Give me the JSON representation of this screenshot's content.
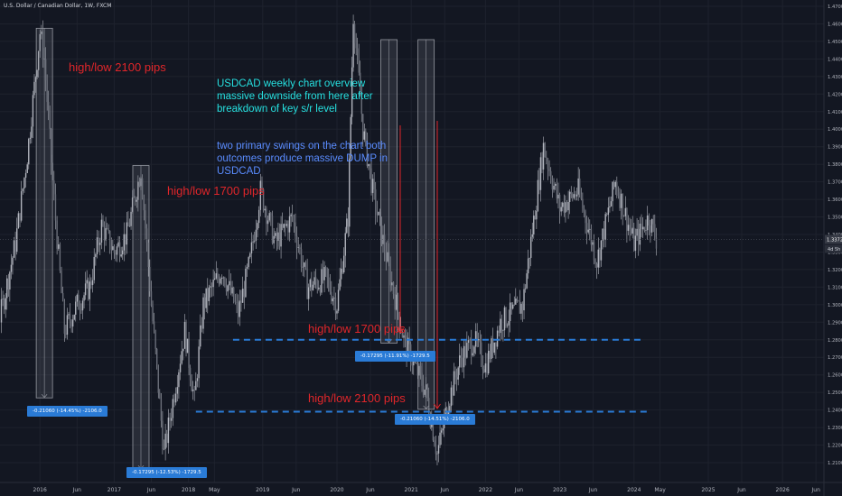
{
  "header": {
    "title": "U.S. Dollar / Canadian Dollar, 1W, FXCM"
  },
  "annotations": {
    "a1": "high/low 2100 pips",
    "a2": "high/low 1700 pips",
    "a3": "high/low 1700 pips",
    "a4": "high/low 2100 pips",
    "overview": "USDCAD weekly chart overview massive downside from here after breakdown of key s/r level",
    "swings": "two primary swings on the chart both outcomes produce massive DUMP in USDCAD"
  },
  "measure_labels": {
    "m1": "-0.21060 (-14.45%) -2106.0",
    "m2": "-0.17295 (-12.53%) -1729.5",
    "m3": "-0.17295 (-11.91%) -1729.5",
    "m4": "-0.21060 (-14.51%) -2106.0"
  },
  "price_axis": {
    "current_price": "1.33720",
    "countdown": "4d 5h"
  },
  "colors": {
    "background": "#131722",
    "candle": "#b2b5be",
    "annotation_red": "#e0262a",
    "annotation_cyan": "#26e0e0",
    "annotation_blue": "#5a8cff",
    "support_line": "#2a7bd6",
    "measure_box": "#2a7bd6"
  },
  "chart_data": {
    "type": "candlestick",
    "instrument": "U.S. Dollar / Canadian Dollar",
    "timeframe": "1W",
    "ylim": [
      1.2,
      1.475
    ],
    "y_ticks": [
      "1.47000",
      "1.46000",
      "1.45000",
      "1.44000",
      "1.43000",
      "1.42000",
      "1.41000",
      "1.40000",
      "1.39000",
      "1.38000",
      "1.37000",
      "1.36000",
      "1.35000",
      "1.34000",
      "1.33000",
      "1.32000",
      "1.31000",
      "1.30000",
      "1.29000",
      "1.28000",
      "1.27000",
      "1.26000",
      "1.25000",
      "1.24000",
      "1.23000",
      "1.22000",
      "1.21000"
    ],
    "x_ticks": [
      "2016",
      "Jun",
      "2017",
      "Jun",
      "2018",
      "May",
      "2019",
      "Jun",
      "2020",
      "Jun",
      "2021",
      "Jun",
      "2022",
      "Jun",
      "2023",
      "Jun",
      "2024",
      "May",
      "2025",
      "Jun",
      "2026",
      "Jun"
    ],
    "series": [
      {
        "date": "2015.00",
        "close": 1.225
      },
      {
        "date": "2015.25",
        "close": 1.255
      },
      {
        "date": "2015.50",
        "close": 1.3
      },
      {
        "date": "2015.67",
        "close": 1.335
      },
      {
        "date": "2015.83",
        "close": 1.385
      },
      {
        "date": "2016.00",
        "close": 1.455
      },
      {
        "date": "2016.06",
        "close": 1.44
      },
      {
        "date": "2016.17",
        "close": 1.37
      },
      {
        "date": "2016.33",
        "close": 1.285
      },
      {
        "date": "2016.50",
        "close": 1.3
      },
      {
        "date": "2016.67",
        "close": 1.31
      },
      {
        "date": "2016.83",
        "close": 1.345
      },
      {
        "date": "2017.00",
        "close": 1.33
      },
      {
        "date": "2017.17",
        "close": 1.34
      },
      {
        "date": "2017.36",
        "close": 1.377
      },
      {
        "date": "2017.50",
        "close": 1.3
      },
      {
        "date": "2017.67",
        "close": 1.215
      },
      {
        "date": "2017.83",
        "close": 1.255
      },
      {
        "date": "2017.95",
        "close": 1.285
      },
      {
        "date": "2018.08",
        "close": 1.245
      },
      {
        "date": "2018.20",
        "close": 1.3
      },
      {
        "date": "2018.45",
        "close": 1.32
      },
      {
        "date": "2018.67",
        "close": 1.295
      },
      {
        "date": "2018.83",
        "close": 1.325
      },
      {
        "date": "2018.97",
        "close": 1.365
      },
      {
        "date": "2019.17",
        "close": 1.335
      },
      {
        "date": "2019.40",
        "close": 1.35
      },
      {
        "date": "2019.60",
        "close": 1.31
      },
      {
        "date": "2019.85",
        "close": 1.315
      },
      {
        "date": "2020.00",
        "close": 1.3
      },
      {
        "date": "2020.15",
        "close": 1.35
      },
      {
        "date": "2020.22",
        "close": 1.465
      },
      {
        "date": "2020.35",
        "close": 1.4
      },
      {
        "date": "2020.50",
        "close": 1.36
      },
      {
        "date": "2020.70",
        "close": 1.32
      },
      {
        "date": "2020.90",
        "close": 1.28
      },
      {
        "date": "2021.05",
        "close": 1.265
      },
      {
        "date": "2021.20",
        "close": 1.25
      },
      {
        "date": "2021.35",
        "close": 1.215
      },
      {
        "date": "2021.50",
        "close": 1.245
      },
      {
        "date": "2021.67",
        "close": 1.27
      },
      {
        "date": "2021.85",
        "close": 1.28
      },
      {
        "date": "2022.00",
        "close": 1.265
      },
      {
        "date": "2022.20",
        "close": 1.29
      },
      {
        "date": "2022.50",
        "close": 1.3
      },
      {
        "date": "2022.78",
        "close": 1.39
      },
      {
        "date": "2023.00",
        "close": 1.355
      },
      {
        "date": "2023.25",
        "close": 1.365
      },
      {
        "date": "2023.50",
        "close": 1.325
      },
      {
        "date": "2023.75",
        "close": 1.37
      },
      {
        "date": "2024.00",
        "close": 1.335
      },
      {
        "date": "2024.20",
        "close": 1.35
      },
      {
        "date": "2024.30",
        "close": 1.3372
      }
    ],
    "support_levels": [
      1.28,
      1.239
    ],
    "measures": [
      {
        "from_date": "2016.06",
        "from": 1.4575,
        "to": 1.2469
      },
      {
        "from_date": "2017.36",
        "from": 1.3793,
        "to": 1.2063
      },
      {
        "from_date": "2020.70",
        "from": 1.451,
        "to": 1.2781
      },
      {
        "from_date": "2021.20",
        "from": 1.451,
        "to": 1.2404
      }
    ]
  }
}
